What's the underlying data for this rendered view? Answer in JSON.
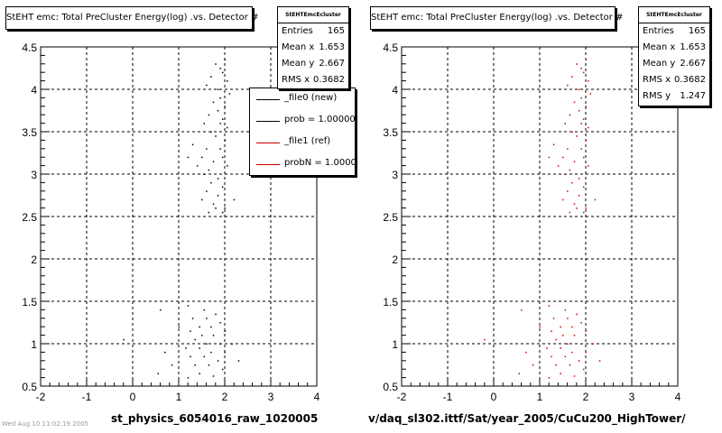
{
  "chart_data": [
    {
      "type": "scatter",
      "title": "StEHT emc: Total PreCluster Energy(log) .vs. Detector #",
      "xlabel": "st_physics_6054016_raw_1020005",
      "ylabel": "",
      "xlim": [
        -2,
        4
      ],
      "ylim": [
        0.5,
        4.5
      ],
      "x_ticks": [
        "-2",
        "-1",
        "0",
        "1",
        "2",
        "3",
        "4"
      ],
      "y_ticks": [
        "0.5",
        "1",
        "1.5",
        "2",
        "2.5",
        "3",
        "3.5",
        "4",
        "4.5"
      ],
      "grid": true,
      "marker_color": "#000000",
      "stats": {
        "title": "StEHTEmcEcluster",
        "rows": [
          {
            "label": "Entries",
            "value": "165"
          },
          {
            "label": "Mean x",
            "value": "1.653"
          },
          {
            "label": "Mean y",
            "value": "2.667"
          },
          {
            "label": "RMS x",
            "value": "0.3682"
          }
        ]
      },
      "legend": {
        "placement": "top-right",
        "entries": [
          {
            "label": "_file0 (new)",
            "color": "#000000"
          },
          {
            "label": "prob = 1.000000",
            "color": "#000000"
          },
          {
            "label": "_file1 (ref)",
            "color": "#cc0000"
          },
          {
            "label": "probN = 1.000000",
            "color": "#cc0000"
          }
        ]
      },
      "points": [
        [
          1.8,
          4.3
        ],
        [
          1.9,
          4.25
        ],
        [
          2.0,
          4.35
        ],
        [
          1.7,
          4.15
        ],
        [
          1.95,
          4.2
        ],
        [
          2.05,
          4.1
        ],
        [
          1.85,
          4.0
        ],
        [
          1.6,
          4.05
        ],
        [
          2.1,
          3.95
        ],
        [
          1.75,
          3.85
        ],
        [
          1.9,
          3.9
        ],
        [
          2.0,
          3.8
        ],
        [
          1.65,
          3.7
        ],
        [
          1.85,
          3.75
        ],
        [
          1.95,
          3.65
        ],
        [
          1.55,
          3.6
        ],
        [
          1.9,
          3.6
        ],
        [
          2.05,
          3.55
        ],
        [
          1.7,
          3.5
        ],
        [
          1.8,
          3.45
        ],
        [
          2.0,
          3.4
        ],
        [
          1.3,
          3.35
        ],
        [
          1.6,
          3.3
        ],
        [
          1.9,
          3.3
        ],
        [
          1.2,
          3.2
        ],
        [
          1.5,
          3.2
        ],
        [
          1.75,
          3.15
        ],
        [
          1.95,
          3.2
        ],
        [
          1.4,
          3.1
        ],
        [
          1.65,
          3.05
        ],
        [
          2.05,
          3.1
        ],
        [
          1.55,
          3.0
        ],
        [
          1.85,
          2.95
        ],
        [
          1.7,
          2.9
        ],
        [
          1.95,
          2.85
        ],
        [
          1.6,
          2.8
        ],
        [
          1.85,
          2.75
        ],
        [
          1.5,
          2.7
        ],
        [
          1.75,
          2.65
        ],
        [
          2.0,
          2.6
        ],
        [
          1.8,
          2.6
        ],
        [
          1.65,
          2.55
        ],
        [
          1.95,
          2.55
        ],
        [
          2.2,
          2.7
        ],
        [
          1.2,
          1.45
        ],
        [
          1.55,
          1.4
        ],
        [
          1.8,
          1.35
        ],
        [
          1.3,
          1.3
        ],
        [
          1.6,
          1.3
        ],
        [
          1.9,
          1.25
        ],
        [
          1.45,
          1.2
        ],
        [
          1.7,
          1.2
        ],
        [
          1.25,
          1.15
        ],
        [
          2.0,
          1.15
        ],
        [
          1.5,
          1.1
        ],
        [
          1.75,
          1.1
        ],
        [
          1.35,
          1.05
        ],
        [
          1.6,
          1.0
        ],
        [
          1.9,
          1.0
        ],
        [
          1.15,
          0.95
        ],
        [
          1.45,
          0.95
        ],
        [
          1.7,
          0.9
        ],
        [
          2.0,
          0.9
        ],
        [
          1.25,
          0.85
        ],
        [
          1.55,
          0.85
        ],
        [
          1.85,
          0.8
        ],
        [
          1.35,
          0.75
        ],
        [
          1.65,
          0.75
        ],
        [
          1.95,
          0.7
        ],
        [
          1.45,
          0.65
        ],
        [
          1.75,
          0.62
        ],
        [
          1.2,
          0.6
        ],
        [
          0.6,
          1.4
        ],
        [
          0.7,
          0.9
        ],
        [
          0.85,
          0.75
        ],
        [
          -0.2,
          1.05
        ],
        [
          2.3,
          0.8
        ],
        [
          0.55,
          0.65
        ],
        [
          1.0,
          1.2
        ],
        [
          2.15,
          1.0
        ]
      ]
    },
    {
      "type": "scatter",
      "title": "StEHT emc: Total PreCluster Energy(log) .vs. Detector #",
      "xlabel": "v/daq_sl302.ittf/Sat/year_2005/CuCu200_HighTower/",
      "ylabel": "",
      "xlim": [
        -2,
        4
      ],
      "ylim": [
        0.5,
        4.5
      ],
      "x_ticks": [
        "-2",
        "-1",
        "0",
        "1",
        "2",
        "3",
        "4"
      ],
      "y_ticks": [
        "0.5",
        "1",
        "1.5",
        "2",
        "2.5",
        "3",
        "3.5",
        "4",
        "4.5"
      ],
      "grid": true,
      "marker_color": "#cc0000",
      "stats": {
        "title": "StEHTEmcEcluster",
        "rows": [
          {
            "label": "Entries",
            "value": "165"
          },
          {
            "label": "Mean x",
            "value": "1.653"
          },
          {
            "label": "Mean y",
            "value": "2.667"
          },
          {
            "label": "RMS x",
            "value": "0.3682"
          },
          {
            "label": "RMS y",
            "value": "1.247"
          }
        ]
      },
      "points": [
        [
          1.8,
          4.3
        ],
        [
          1.9,
          4.25
        ],
        [
          2.0,
          4.35
        ],
        [
          1.7,
          4.15
        ],
        [
          1.95,
          4.2
        ],
        [
          2.05,
          4.1
        ],
        [
          1.85,
          4.0
        ],
        [
          1.6,
          4.05
        ],
        [
          2.1,
          3.95
        ],
        [
          1.75,
          3.85
        ],
        [
          1.9,
          3.9
        ],
        [
          2.0,
          3.8
        ],
        [
          1.65,
          3.7
        ],
        [
          1.85,
          3.75
        ],
        [
          1.95,
          3.65
        ],
        [
          1.55,
          3.6
        ],
        [
          1.9,
          3.6
        ],
        [
          2.05,
          3.55
        ],
        [
          1.7,
          3.5
        ],
        [
          1.8,
          3.45
        ],
        [
          2.0,
          3.4
        ],
        [
          1.3,
          3.35
        ],
        [
          1.6,
          3.3
        ],
        [
          1.9,
          3.3
        ],
        [
          1.2,
          3.2
        ],
        [
          1.5,
          3.2
        ],
        [
          1.75,
          3.15
        ],
        [
          1.95,
          3.2
        ],
        [
          1.4,
          3.1
        ],
        [
          1.65,
          3.05
        ],
        [
          2.05,
          3.1
        ],
        [
          1.55,
          3.0
        ],
        [
          1.85,
          2.95
        ],
        [
          1.7,
          2.9
        ],
        [
          1.95,
          2.85
        ],
        [
          1.6,
          2.8
        ],
        [
          1.85,
          2.75
        ],
        [
          1.5,
          2.7
        ],
        [
          1.75,
          2.65
        ],
        [
          2.0,
          2.6
        ],
        [
          1.8,
          2.6
        ],
        [
          1.65,
          2.55
        ],
        [
          1.95,
          2.55
        ],
        [
          2.2,
          2.7
        ],
        [
          1.2,
          1.45
        ],
        [
          1.55,
          1.4
        ],
        [
          1.8,
          1.35
        ],
        [
          1.3,
          1.3
        ],
        [
          1.6,
          1.3
        ],
        [
          1.9,
          1.25
        ],
        [
          1.45,
          1.2
        ],
        [
          1.7,
          1.2
        ],
        [
          1.25,
          1.15
        ],
        [
          2.0,
          1.15
        ],
        [
          1.5,
          1.1
        ],
        [
          1.75,
          1.1
        ],
        [
          1.35,
          1.05
        ],
        [
          1.6,
          1.0
        ],
        [
          1.9,
          1.0
        ],
        [
          1.15,
          0.95
        ],
        [
          1.45,
          0.95
        ],
        [
          1.7,
          0.9
        ],
        [
          2.0,
          0.9
        ],
        [
          1.25,
          0.85
        ],
        [
          1.55,
          0.85
        ],
        [
          1.85,
          0.8
        ],
        [
          1.35,
          0.75
        ],
        [
          1.65,
          0.75
        ],
        [
          1.95,
          0.7
        ],
        [
          1.45,
          0.65
        ],
        [
          1.75,
          0.62
        ],
        [
          1.2,
          0.6
        ],
        [
          0.6,
          1.4
        ],
        [
          0.7,
          0.9
        ],
        [
          0.85,
          0.75
        ],
        [
          -0.2,
          1.05
        ],
        [
          2.3,
          0.8
        ],
        [
          0.55,
          0.65
        ],
        [
          1.0,
          1.2
        ],
        [
          2.15,
          1.0
        ]
      ]
    }
  ],
  "footer_note": "Wed Aug 10 11:02:19 2005"
}
